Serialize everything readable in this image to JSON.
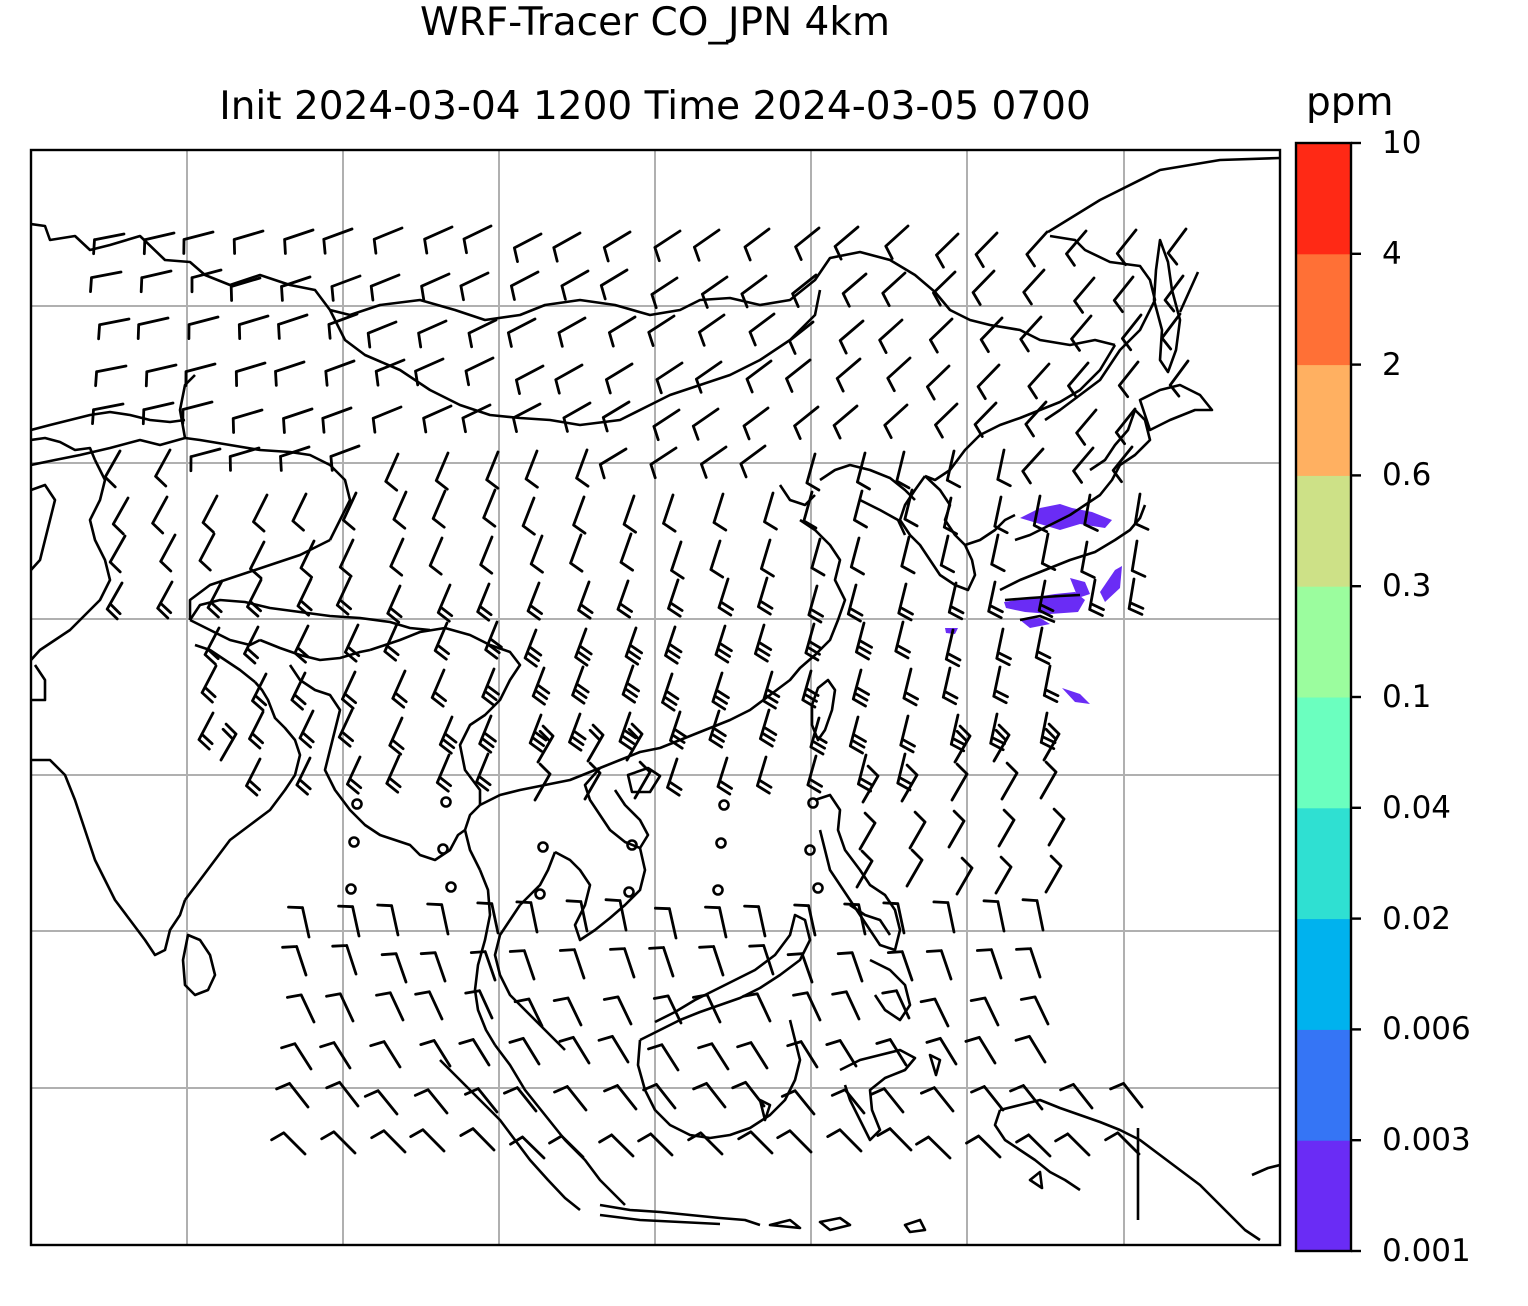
{
  "title": {
    "line1": "WRF-Tracer CO_JPN 4km",
    "line2": "Init 2024-03-04 1200 Time 2024-03-05 0700"
  },
  "colorbar": {
    "unit": "ppm",
    "ticks": [
      "0.001",
      "0.003",
      "0.006",
      "0.02",
      "0.04",
      "0.1",
      "0.3",
      "0.6",
      "2",
      "4",
      "10"
    ],
    "colors": [
      "#6a2cf5",
      "#3575f5",
      "#00b2ee",
      "#2fe0d2",
      "#6bffbf",
      "#9bfd9e",
      "#cde187",
      "#ffb061",
      "#ff7036",
      "#ff2915"
    ]
  },
  "colors": {
    "coastline": "#000000",
    "grid": "#b0b0b0",
    "barb": "#000000",
    "tracer": "#6a2cf5"
  }
}
